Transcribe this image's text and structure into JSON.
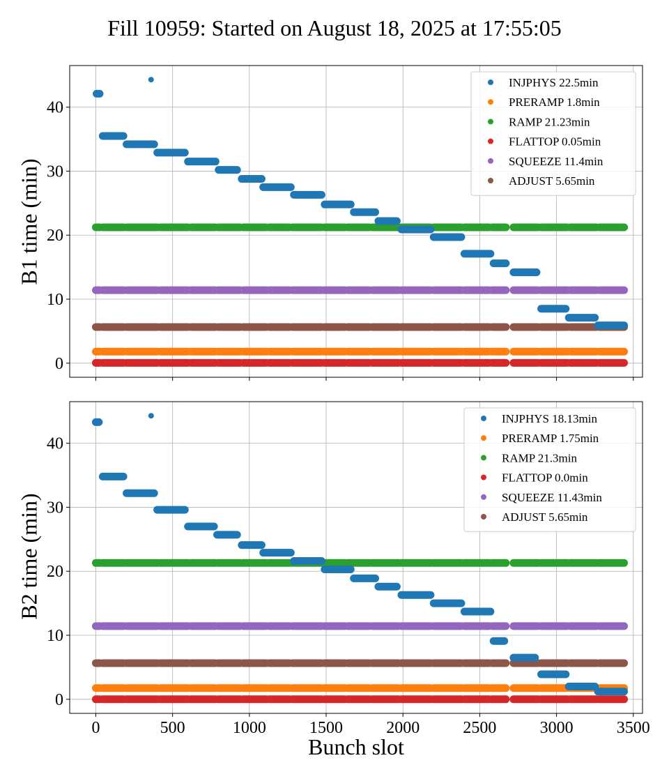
{
  "colors": {
    "INJPHYS": "#1f77b4",
    "PRERAMP": "#ff7f0e",
    "RAMP": "#2ca02c",
    "FLATTOP": "#d62728",
    "SQUEEZE": "#9467bd",
    "ADJUST": "#8c564b"
  },
  "figure": {
    "title": "Fill 10959: Started on August 18, 2025 at 17:55:05"
  },
  "chart_data": [
    {
      "type": "scatter",
      "name": "B1",
      "title": "",
      "xlabel": "",
      "ylabel": "B1 time (min)",
      "xlim": [
        -170,
        3560
      ],
      "ylim": [
        -2.2,
        46.5
      ],
      "xticks": [
        0,
        500,
        1000,
        1500,
        2000,
        2500,
        3000,
        3500
      ],
      "show_xtick_labels": false,
      "yticks": [
        0,
        10,
        20,
        30,
        40
      ],
      "grid": true,
      "legend_placement": "upper-right",
      "legend": [
        {
          "key": "INJPHYS",
          "label": "INJPHYS 22.5min"
        },
        {
          "key": "PRERAMP",
          "label": "PRERAMP 1.8min"
        },
        {
          "key": "RAMP",
          "label": "RAMP 21.23min"
        },
        {
          "key": "FLATTOP",
          "label": "FLATTOP 0.05min"
        },
        {
          "key": "SQUEEZE",
          "label": "SQUEEZE 11.4min"
        },
        {
          "key": "ADJUST",
          "label": "ADJUST 5.65min"
        }
      ],
      "constant_series": [
        {
          "key": "FLATTOP",
          "y": 0.05
        },
        {
          "key": "PRERAMP",
          "y": 1.8
        },
        {
          "key": "ADJUST",
          "y": 5.65
        },
        {
          "key": "SQUEEZE",
          "y": 11.4
        },
        {
          "key": "RAMP",
          "y": 21.23
        }
      ],
      "constant_segments": [
        [
          0,
          25
        ],
        [
          45,
          180
        ],
        [
          200,
          400
        ],
        [
          420,
          600
        ],
        [
          620,
          780
        ],
        [
          800,
          940
        ],
        [
          960,
          1110
        ],
        [
          1130,
          1260
        ],
        [
          1280,
          1470
        ],
        [
          1490,
          1620
        ],
        [
          1640,
          1780
        ],
        [
          1800,
          1970
        ],
        [
          1990,
          2180
        ],
        [
          2200,
          2380
        ],
        [
          2400,
          2560
        ],
        [
          2580,
          2670
        ],
        [
          2720,
          2880
        ],
        [
          2900,
          3070
        ],
        [
          3090,
          3260
        ],
        [
          3280,
          3440
        ]
      ],
      "injphys": [
        {
          "x": [
            5,
            25
          ],
          "y": 42.1
        },
        {
          "x": [
            360,
            360
          ],
          "y": 44.3
        },
        {
          "x": [
            45,
            180
          ],
          "y": 35.5
        },
        {
          "x": [
            200,
            380
          ],
          "y": 34.2
        },
        {
          "x": [
            400,
            580
          ],
          "y": 32.9
        },
        {
          "x": [
            600,
            780
          ],
          "y": 31.5
        },
        {
          "x": [
            800,
            920
          ],
          "y": 30.2
        },
        {
          "x": [
            950,
            1080
          ],
          "y": 28.8
        },
        {
          "x": [
            1090,
            1270
          ],
          "y": 27.5
        },
        {
          "x": [
            1290,
            1470
          ],
          "y": 26.3
        },
        {
          "x": [
            1490,
            1660
          ],
          "y": 24.8
        },
        {
          "x": [
            1680,
            1820
          ],
          "y": 23.6
        },
        {
          "x": [
            1840,
            1960
          ],
          "y": 22.2
        },
        {
          "x": [
            1990,
            2180
          ],
          "y": 20.9
        },
        {
          "x": [
            2200,
            2380
          ],
          "y": 19.7
        },
        {
          "x": [
            2400,
            2570
          ],
          "y": 17.1
        },
        {
          "x": [
            2590,
            2670
          ],
          "y": 15.6
        },
        {
          "x": [
            2720,
            2870
          ],
          "y": 14.2
        },
        {
          "x": [
            2900,
            3060
          ],
          "y": 8.5
        },
        {
          "x": [
            3080,
            3250
          ],
          "y": 7.1
        },
        {
          "x": [
            3270,
            3440
          ],
          "y": 5.9
        }
      ]
    },
    {
      "type": "scatter",
      "name": "B2",
      "title": "",
      "xlabel": "Bunch slot",
      "ylabel": "B2 time (min)",
      "xlim": [
        -170,
        3560
      ],
      "ylim": [
        -2.2,
        46.5
      ],
      "xticks": [
        0,
        500,
        1000,
        1500,
        2000,
        2500,
        3000,
        3500
      ],
      "show_xtick_labels": true,
      "yticks": [
        0,
        10,
        20,
        30,
        40
      ],
      "grid": true,
      "legend_placement": "upper-right",
      "legend": [
        {
          "key": "INJPHYS",
          "label": "INJPHYS 18.13min"
        },
        {
          "key": "PRERAMP",
          "label": "PRERAMP 1.75min"
        },
        {
          "key": "RAMP",
          "label": "RAMP 21.3min"
        },
        {
          "key": "FLATTOP",
          "label": "FLATTOP 0.0min"
        },
        {
          "key": "SQUEEZE",
          "label": "SQUEEZE 11.43min"
        },
        {
          "key": "ADJUST",
          "label": "ADJUST 5.65min"
        }
      ],
      "constant_series": [
        {
          "key": "FLATTOP",
          "y": 0.0
        },
        {
          "key": "PRERAMP",
          "y": 1.75
        },
        {
          "key": "ADJUST",
          "y": 5.65
        },
        {
          "key": "SQUEEZE",
          "y": 11.43
        },
        {
          "key": "RAMP",
          "y": 21.3
        }
      ],
      "constant_segments": [
        [
          0,
          25
        ],
        [
          45,
          180
        ],
        [
          200,
          400
        ],
        [
          420,
          600
        ],
        [
          620,
          780
        ],
        [
          800,
          940
        ],
        [
          960,
          1110
        ],
        [
          1130,
          1260
        ],
        [
          1280,
          1470
        ],
        [
          1490,
          1620
        ],
        [
          1640,
          1780
        ],
        [
          1800,
          1970
        ],
        [
          1990,
          2180
        ],
        [
          2200,
          2380
        ],
        [
          2400,
          2560
        ],
        [
          2580,
          2670
        ],
        [
          2720,
          2880
        ],
        [
          2900,
          3070
        ],
        [
          3090,
          3260
        ],
        [
          3280,
          3440
        ]
      ],
      "injphys": [
        {
          "x": [
            0,
            20
          ],
          "y": 43.3
        },
        {
          "x": [
            360,
            360
          ],
          "y": 44.3
        },
        {
          "x": [
            45,
            180
          ],
          "y": 34.8
        },
        {
          "x": [
            200,
            380
          ],
          "y": 32.2
        },
        {
          "x": [
            400,
            580
          ],
          "y": 29.6
        },
        {
          "x": [
            600,
            770
          ],
          "y": 27.0
        },
        {
          "x": [
            790,
            920
          ],
          "y": 25.7
        },
        {
          "x": [
            950,
            1080
          ],
          "y": 24.1
        },
        {
          "x": [
            1090,
            1270
          ],
          "y": 22.9
        },
        {
          "x": [
            1290,
            1470
          ],
          "y": 21.6
        },
        {
          "x": [
            1490,
            1660
          ],
          "y": 20.3
        },
        {
          "x": [
            1680,
            1820
          ],
          "y": 18.9
        },
        {
          "x": [
            1840,
            1960
          ],
          "y": 17.6
        },
        {
          "x": [
            1990,
            2180
          ],
          "y": 16.3
        },
        {
          "x": [
            2200,
            2380
          ],
          "y": 15.0
        },
        {
          "x": [
            2400,
            2570
          ],
          "y": 13.7
        },
        {
          "x": [
            2590,
            2660
          ],
          "y": 9.1
        },
        {
          "x": [
            2720,
            2860
          ],
          "y": 6.5
        },
        {
          "x": [
            2900,
            3060
          ],
          "y": 3.9
        },
        {
          "x": [
            3080,
            3250
          ],
          "y": 2.0
        },
        {
          "x": [
            3270,
            3440
          ],
          "y": 1.2
        }
      ]
    }
  ]
}
